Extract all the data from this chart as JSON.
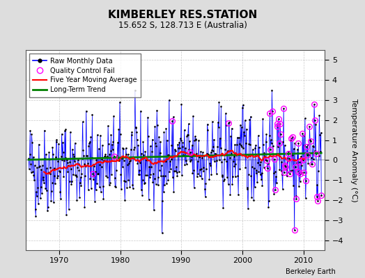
{
  "title": "KIMBERLEY RES.STATION",
  "subtitle": "15.652 S, 128.713 E (Australia)",
  "ylabel": "Temperature Anomaly (°C)",
  "credit": "Berkeley Earth",
  "ylim": [
    -4.5,
    5.5
  ],
  "xlim": [
    1964.5,
    2013.5
  ],
  "xticks": [
    1970,
    1980,
    1990,
    2000,
    2010
  ],
  "yticks": [
    -4,
    -3,
    -2,
    -1,
    0,
    1,
    2,
    3,
    4,
    5
  ],
  "bg_color": "#dddddd",
  "plot_bg_color": "#ffffff",
  "grid_color": "#bbbbbb",
  "seed": 42
}
